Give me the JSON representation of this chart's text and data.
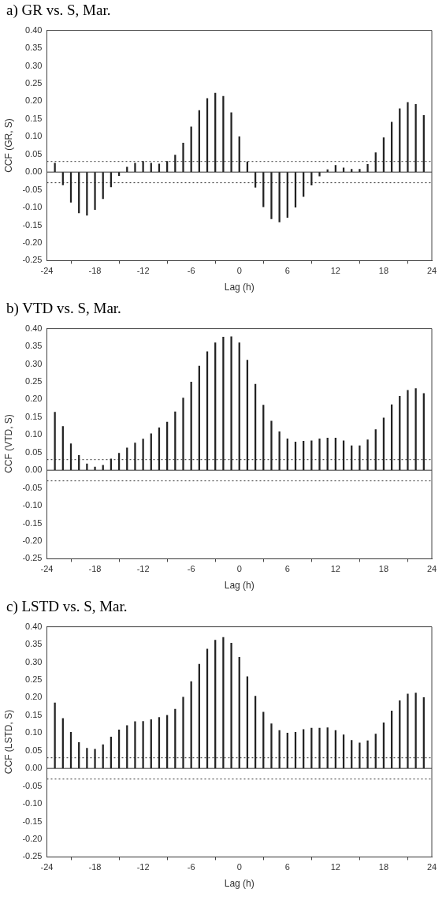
{
  "chart_data": [
    {
      "type": "bar",
      "title": "a) GR vs. S, Mar.",
      "xlabel": "Lag (h)",
      "ylabel": "CCF (GR, S)",
      "color": "#222222",
      "x": [
        -23,
        -22,
        -21,
        -20,
        -19,
        -18,
        -17,
        -16,
        -15,
        -14,
        -13,
        -12,
        -11,
        -10,
        -9,
        -8,
        -7,
        -6,
        -5,
        -4,
        -3,
        -2,
        -1,
        0,
        1,
        2,
        3,
        4,
        5,
        6,
        7,
        8,
        9,
        10,
        11,
        12,
        13,
        14,
        15,
        16,
        17,
        18,
        19,
        20,
        21,
        22,
        23
      ],
      "values": [
        0.025,
        -0.036,
        -0.085,
        -0.115,
        -0.122,
        -0.106,
        -0.075,
        -0.042,
        -0.01,
        0.014,
        0.025,
        0.03,
        0.025,
        0.023,
        0.03,
        0.048,
        0.082,
        0.128,
        0.174,
        0.208,
        0.223,
        0.214,
        0.168,
        0.1,
        0.029,
        -0.043,
        -0.098,
        -0.132,
        -0.141,
        -0.128,
        -0.099,
        -0.069,
        -0.037,
        -0.011,
        0.007,
        0.019,
        0.012,
        0.008,
        0.008,
        0.022,
        0.055,
        0.097,
        0.141,
        0.179,
        0.197,
        0.191,
        0.16
      ],
      "xlim": [
        -24,
        24
      ],
      "xticks": [
        -24,
        -18,
        -12,
        -6,
        0,
        6,
        12,
        18,
        24
      ],
      "ylim": [
        -0.25,
        0.4
      ],
      "yticks": [
        {
          "value": -0.25,
          "label": "-0.25"
        },
        {
          "value": -0.2,
          "label": "-0.20"
        },
        {
          "value": -0.15,
          "label": "-0.15"
        },
        {
          "value": -0.1,
          "label": "-0.10"
        },
        {
          "value": -0.05,
          "label": "-0.05"
        },
        {
          "value": 0,
          "label": "0.00"
        },
        {
          "value": 0.05,
          "label": "0.05"
        },
        {
          "value": 0.1,
          "label": "0.10"
        },
        {
          "value": 0.15,
          "label": "0.15"
        },
        {
          "value": 0.2,
          "label": "0.20"
        },
        {
          "value": 0.25,
          "label": "0.25"
        },
        {
          "value": 0.3,
          "label": "0.30"
        },
        {
          "value": 0.35,
          "label": "0.35"
        },
        {
          "value": 0.4,
          "label": "0.40"
        }
      ],
      "ref_lines": [
        {
          "axis": "y",
          "value": 0,
          "line_style": "solid"
        },
        {
          "axis": "y",
          "value": 0.03,
          "line_style": "dotted"
        },
        {
          "axis": "y",
          "value": -0.03,
          "line_style": "dotted"
        }
      ]
    },
    {
      "type": "bar",
      "title": "b) VTD vs. S, Mar.",
      "xlabel": "Lag (h)",
      "ylabel": "CCF (VTD, S)",
      "color": "#222222",
      "x": [
        -23,
        -22,
        -21,
        -20,
        -19,
        -18,
        -17,
        -16,
        -15,
        -14,
        -13,
        -12,
        -11,
        -10,
        -9,
        -8,
        -7,
        -6,
        -5,
        -4,
        -3,
        -2,
        -1,
        0,
        1,
        2,
        3,
        4,
        5,
        6,
        7,
        8,
        9,
        10,
        11,
        12,
        13,
        14,
        15,
        16,
        17,
        18,
        19,
        20,
        21,
        22,
        23
      ],
      "values": [
        0.164,
        0.124,
        0.075,
        0.042,
        0.018,
        0.009,
        0.014,
        0.032,
        0.048,
        0.063,
        0.077,
        0.088,
        0.103,
        0.12,
        0.136,
        0.165,
        0.204,
        0.249,
        0.294,
        0.335,
        0.36,
        0.376,
        0.377,
        0.36,
        0.311,
        0.243,
        0.184,
        0.139,
        0.109,
        0.089,
        0.08,
        0.082,
        0.083,
        0.089,
        0.091,
        0.091,
        0.083,
        0.069,
        0.069,
        0.086,
        0.115,
        0.148,
        0.185,
        0.209,
        0.226,
        0.231,
        0.217
      ],
      "xlim": [
        -24,
        24
      ],
      "xticks": [
        -24,
        -18,
        -12,
        -6,
        0,
        6,
        12,
        18,
        24
      ],
      "ylim": [
        -0.25,
        0.4
      ],
      "yticks": [
        {
          "value": -0.25,
          "label": "-0.25"
        },
        {
          "value": -0.2,
          "label": "-0.20"
        },
        {
          "value": -0.15,
          "label": "-0.15"
        },
        {
          "value": -0.1,
          "label": "-0.10"
        },
        {
          "value": -0.05,
          "label": "-0.05"
        },
        {
          "value": 0,
          "label": "0.00"
        },
        {
          "value": 0.05,
          "label": "0.05"
        },
        {
          "value": 0.1,
          "label": "0.10"
        },
        {
          "value": 0.15,
          "label": "0.15"
        },
        {
          "value": 0.2,
          "label": "0.20"
        },
        {
          "value": 0.25,
          "label": "0.25"
        },
        {
          "value": 0.3,
          "label": "0.30"
        },
        {
          "value": 0.35,
          "label": "0.35"
        },
        {
          "value": 0.4,
          "label": "0.40"
        }
      ],
      "ref_lines": [
        {
          "axis": "y",
          "value": 0,
          "line_style": "solid"
        },
        {
          "axis": "y",
          "value": 0.03,
          "line_style": "dotted"
        },
        {
          "axis": "y",
          "value": -0.03,
          "line_style": "dotted"
        }
      ]
    },
    {
      "type": "bar",
      "title": "c) LSTD vs. S, Mar.",
      "xlabel": "Lag (h)",
      "ylabel": "CCF (LSTD, S)",
      "color": "#222222",
      "x": [
        -23,
        -22,
        -21,
        -20,
        -19,
        -18,
        -17,
        -16,
        -15,
        -14,
        -13,
        -12,
        -11,
        -10,
        -9,
        -8,
        -7,
        -6,
        -5,
        -4,
        -3,
        -2,
        -1,
        0,
        1,
        2,
        3,
        4,
        5,
        6,
        7,
        8,
        9,
        10,
        11,
        12,
        13,
        14,
        15,
        16,
        17,
        18,
        19,
        20,
        21,
        22,
        23
      ],
      "values": [
        0.185,
        0.141,
        0.102,
        0.073,
        0.057,
        0.054,
        0.067,
        0.089,
        0.109,
        0.121,
        0.132,
        0.133,
        0.138,
        0.144,
        0.15,
        0.167,
        0.201,
        0.245,
        0.294,
        0.337,
        0.362,
        0.37,
        0.354,
        0.314,
        0.259,
        0.204,
        0.159,
        0.126,
        0.107,
        0.1,
        0.102,
        0.11,
        0.114,
        0.114,
        0.115,
        0.107,
        0.095,
        0.079,
        0.072,
        0.078,
        0.097,
        0.129,
        0.162,
        0.191,
        0.21,
        0.213,
        0.2
      ],
      "xlim": [
        -24,
        24
      ],
      "xticks": [
        -24,
        -18,
        -12,
        -6,
        0,
        6,
        12,
        18,
        24
      ],
      "ylim": [
        -0.25,
        0.4
      ],
      "yticks": [
        {
          "value": -0.25,
          "label": "-0.25"
        },
        {
          "value": -0.2,
          "label": "-0.20"
        },
        {
          "value": -0.15,
          "label": "-0.15"
        },
        {
          "value": -0.1,
          "label": "-0.10"
        },
        {
          "value": -0.05,
          "label": "-0.05"
        },
        {
          "value": 0,
          "label": "0.00"
        },
        {
          "value": 0.05,
          "label": "0.05"
        },
        {
          "value": 0.1,
          "label": "0.10"
        },
        {
          "value": 0.15,
          "label": "0.15"
        },
        {
          "value": 0.2,
          "label": "0.20"
        },
        {
          "value": 0.25,
          "label": "0.25"
        },
        {
          "value": 0.3,
          "label": "0.30"
        },
        {
          "value": 0.35,
          "label": "0.35"
        },
        {
          "value": 0.4,
          "label": "0.40"
        }
      ],
      "ref_lines": [
        {
          "axis": "y",
          "value": 0,
          "line_style": "solid"
        },
        {
          "axis": "y",
          "value": 0.03,
          "line_style": "dotted"
        },
        {
          "axis": "y",
          "value": -0.03,
          "line_style": "dotted"
        }
      ]
    }
  ]
}
